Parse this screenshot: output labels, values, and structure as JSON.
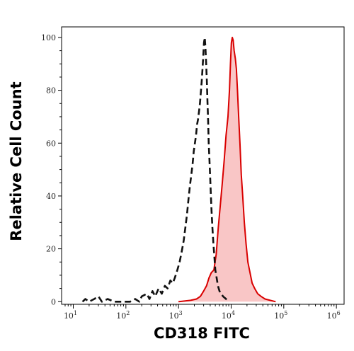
{
  "chart_data": {
    "type": "area",
    "xlabel": "CD318 FITC",
    "ylabel": "Relative Cell Count",
    "xscale": "log",
    "xlim": [
      6,
      1400000
    ],
    "ylim": [
      -1,
      104
    ],
    "grid": false,
    "x_ticks": [
      {
        "value": 10,
        "base": "10",
        "exp": "1"
      },
      {
        "value": 100,
        "base": "10",
        "exp": "2"
      },
      {
        "value": 1000,
        "base": "10",
        "exp": "3"
      },
      {
        "value": 10000,
        "base": "10",
        "exp": "4"
      },
      {
        "value": 100000,
        "base": "10",
        "exp": "5"
      },
      {
        "value": 1000000,
        "base": "10",
        "exp": "6"
      }
    ],
    "y_ticks": [
      0,
      20,
      40,
      60,
      80,
      100
    ],
    "series": [
      {
        "style": "solid-filled",
        "color": "#d90000",
        "fill": "#f9c6c6",
        "points": [
          [
            1000,
            0
          ],
          [
            1700,
            0.5
          ],
          [
            2200,
            1
          ],
          [
            2600,
            2
          ],
          [
            3000,
            4
          ],
          [
            3400,
            6
          ],
          [
            3800,
            9
          ],
          [
            4200,
            11
          ],
          [
            4700,
            12
          ],
          [
            5200,
            18
          ],
          [
            5700,
            28
          ],
          [
            6200,
            36
          ],
          [
            6800,
            45
          ],
          [
            7400,
            54
          ],
          [
            8000,
            63
          ],
          [
            8700,
            70
          ],
          [
            9300,
            80
          ],
          [
            9700,
            90
          ],
          [
            10100,
            98
          ],
          [
            10500,
            100
          ],
          [
            10900,
            99
          ],
          [
            11400,
            95
          ],
          [
            12000,
            92
          ],
          [
            12600,
            88
          ],
          [
            13200,
            80
          ],
          [
            13900,
            70
          ],
          [
            14700,
            60
          ],
          [
            15600,
            48
          ],
          [
            16600,
            40
          ],
          [
            17800,
            30
          ],
          [
            19200,
            22
          ],
          [
            20800,
            15
          ],
          [
            22800,
            11
          ],
          [
            25000,
            7
          ],
          [
            28000,
            5
          ],
          [
            32000,
            3
          ],
          [
            37000,
            2
          ],
          [
            44000,
            1
          ],
          [
            55000,
            0.5
          ],
          [
            70000,
            0
          ]
        ]
      },
      {
        "style": "dashed",
        "color": "#111111",
        "points": [
          [
            15,
            0
          ],
          [
            17,
            1
          ],
          [
            20,
            0
          ],
          [
            25,
            1
          ],
          [
            30,
            2
          ],
          [
            35,
            0
          ],
          [
            45,
            1
          ],
          [
            60,
            0
          ],
          [
            80,
            0
          ],
          [
            120,
            0
          ],
          [
            150,
            1
          ],
          [
            180,
            0
          ],
          [
            200,
            2
          ],
          [
            250,
            3
          ],
          [
            280,
            1
          ],
          [
            320,
            4
          ],
          [
            360,
            2
          ],
          [
            420,
            5
          ],
          [
            480,
            3
          ],
          [
            550,
            6
          ],
          [
            620,
            5
          ],
          [
            700,
            8
          ],
          [
            780,
            7
          ],
          [
            850,
            9
          ],
          [
            950,
            12
          ],
          [
            1050,
            15
          ],
          [
            1150,
            19
          ],
          [
            1250,
            23
          ],
          [
            1350,
            28
          ],
          [
            1450,
            33
          ],
          [
            1550,
            39
          ],
          [
            1650,
            44
          ],
          [
            1750,
            48
          ],
          [
            1850,
            52
          ],
          [
            1950,
            57
          ],
          [
            2050,
            60
          ],
          [
            2150,
            63
          ],
          [
            2250,
            67
          ],
          [
            2350,
            69
          ],
          [
            2450,
            72
          ],
          [
            2550,
            75
          ],
          [
            2650,
            79
          ],
          [
            2750,
            83
          ],
          [
            2850,
            88
          ],
          [
            2950,
            93
          ],
          [
            3050,
            98
          ],
          [
            3150,
            100
          ],
          [
            3250,
            96
          ],
          [
            3350,
            90
          ],
          [
            3450,
            84
          ],
          [
            3550,
            76
          ],
          [
            3650,
            69
          ],
          [
            3750,
            60
          ],
          [
            3900,
            52
          ],
          [
            4050,
            44
          ],
          [
            4200,
            36
          ],
          [
            4400,
            28
          ],
          [
            4600,
            22
          ],
          [
            4800,
            17
          ],
          [
            5000,
            12
          ],
          [
            5300,
            9
          ],
          [
            5600,
            6
          ],
          [
            6000,
            4
          ],
          [
            6500,
            3
          ],
          [
            7000,
            2
          ],
          [
            8000,
            1
          ],
          [
            9000,
            0
          ]
        ]
      }
    ]
  }
}
